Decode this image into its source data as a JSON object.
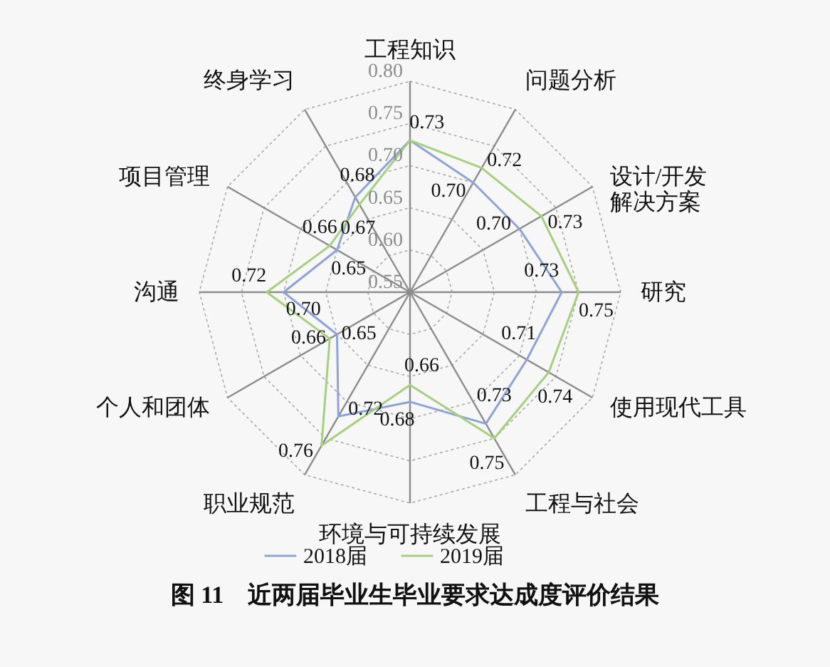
{
  "chart_data": {
    "type": "radar",
    "title": "图 11　近两届毕业生毕业要求达成度评价结果",
    "categories": [
      "工程知识",
      "问题分析",
      "设计/开发解决方案",
      "研究",
      "使用现代工具",
      "工程与社会",
      "环境与可持续发展",
      "职业规范",
      "个人和团体",
      "沟通",
      "项目管理",
      "终身学习"
    ],
    "series": [
      {
        "name": "2018届",
        "color": "#8ea4d8",
        "values": [
          0.73,
          0.7,
          0.7,
          0.73,
          0.71,
          0.73,
          0.68,
          0.72,
          0.65,
          0.7,
          0.65,
          0.68
        ],
        "value_labels": [
          "0.73",
          "0.70",
          "0.70",
          "0.73",
          "0.71",
          "0.73",
          "0.68",
          "0.72",
          "0.65",
          "0.70",
          "0.65",
          "0.68"
        ]
      },
      {
        "name": "2019届",
        "color": "#a6cf7f",
        "values": [
          0.73,
          0.72,
          0.73,
          0.75,
          0.74,
          0.75,
          0.66,
          0.76,
          0.66,
          0.72,
          0.66,
          0.67
        ],
        "value_labels": [
          null,
          "0.72",
          "0.73",
          "0.75",
          "0.74",
          "0.75",
          "0.66",
          "0.76",
          "0.66",
          "0.72",
          "0.66",
          "0.67"
        ]
      }
    ],
    "ylim": [
      0.55,
      0.8
    ],
    "yticks": [
      {
        "value": 0.55,
        "label": "0.55"
      },
      {
        "value": 0.6,
        "label": "0.60"
      },
      {
        "value": 0.65,
        "label": "0.65"
      },
      {
        "value": 0.7,
        "label": "0.70"
      },
      {
        "value": 0.75,
        "label": "0.75"
      },
      {
        "value": 0.8,
        "label": "0.80"
      }
    ],
    "grid": true,
    "legend": "bottom"
  }
}
